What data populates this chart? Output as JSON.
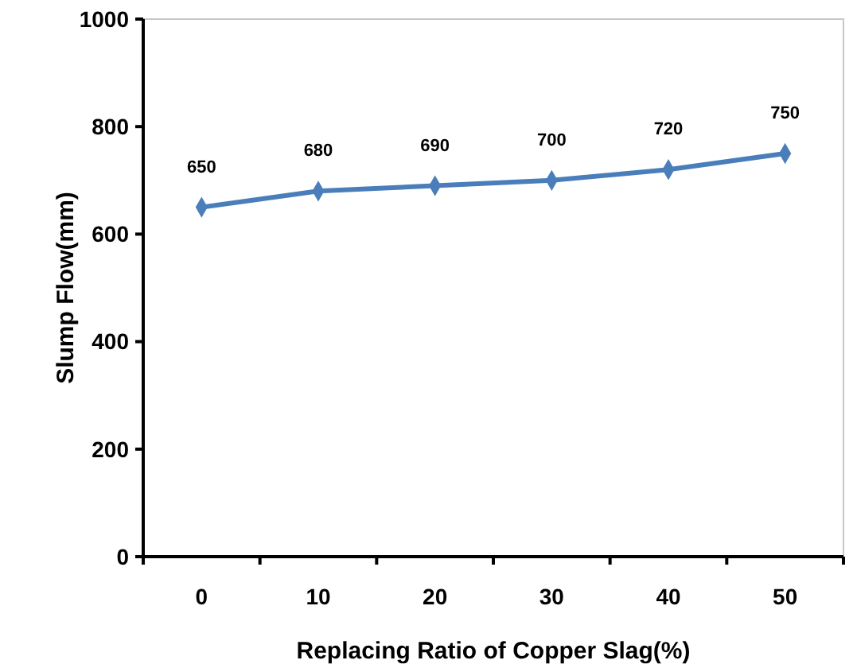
{
  "chart_data": {
    "type": "line",
    "xlabel": "Replacing Ratio of Copper Slag(%)",
    "ylabel": "Slump Flow(mm)",
    "categories": [
      "0",
      "10",
      "20",
      "30",
      "40",
      "50"
    ],
    "series": [
      {
        "color": "#4a7ebb",
        "values": [
          650,
          680,
          690,
          700,
          720,
          750
        ]
      }
    ],
    "ylim": [
      0,
      1000
    ],
    "yticks": [
      0,
      200,
      400,
      600,
      800,
      1000
    ],
    "marker": "diamond",
    "data_labels": true,
    "grid": false
  }
}
